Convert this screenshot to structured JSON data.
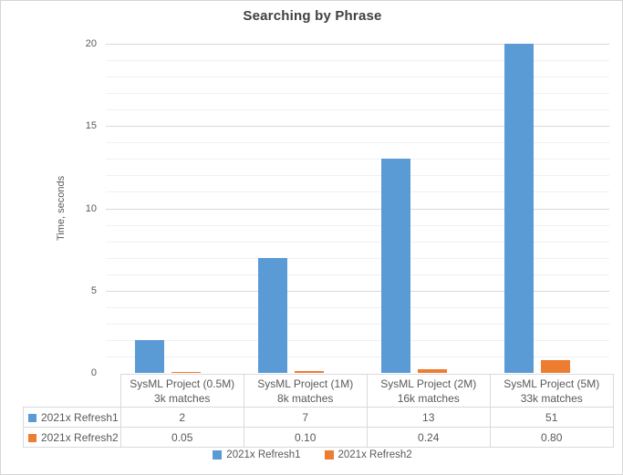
{
  "chart_data": {
    "type": "bar",
    "title": "Searching by Phrase",
    "xlabel": "",
    "ylabel": "Time, seconds",
    "ylim": [
      0,
      20
    ],
    "ytick_major_step": 5,
    "ytick_minor_step": 1,
    "grid": true,
    "legend_position": "bottom",
    "data_table_shown": true,
    "categories": [
      {
        "line1": "SysML Project (0.5M)",
        "line2": "3k matches"
      },
      {
        "line1": "SysML Project (1M)",
        "line2": "8k matches"
      },
      {
        "line1": "SysML Project (2M)",
        "line2": "16k matches"
      },
      {
        "line1": "SysML Project (5M)",
        "line2": "33k matches"
      }
    ],
    "series": [
      {
        "name": "2021x Refresh1",
        "color": "#5B9BD5",
        "values": [
          2,
          7,
          13,
          51
        ],
        "display_values": [
          "2",
          "7",
          "13",
          "51"
        ]
      },
      {
        "name": "2021x Refresh2",
        "color": "#ED7D31",
        "values": [
          0.05,
          0.1,
          0.24,
          0.8
        ],
        "display_values": [
          "0.05",
          "0.10",
          "0.24",
          "0.80"
        ]
      }
    ]
  }
}
